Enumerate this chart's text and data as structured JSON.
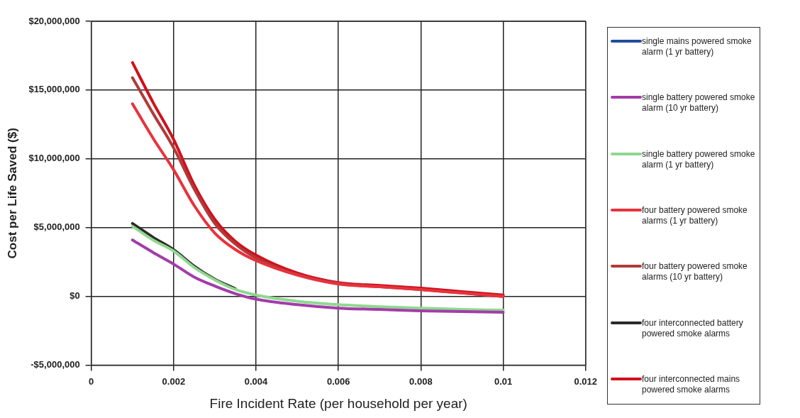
{
  "chart_data": {
    "type": "line",
    "xlabel": "Fire Incident Rate (per household per year)",
    "ylabel": "Cost per Life Saved ($)",
    "x": [
      0.001,
      0.0015,
      0.002,
      0.0025,
      0.003,
      0.0035,
      0.004,
      0.005,
      0.006,
      0.007,
      0.008,
      0.009,
      0.01
    ],
    "series": [
      {
        "name": "single mains powered  smoke alarm (1 yr battery)",
        "color": "#1f4e9c",
        "values": [
          null,
          null,
          null,
          null,
          null,
          null,
          null,
          null,
          null,
          null,
          null,
          null,
          null
        ]
      },
      {
        "name": "single battery powered smoke alarm (10 yr battery)",
        "color": "#a33ca8",
        "values": [
          4100000,
          3200000,
          2350000,
          1400000,
          750000,
          200000,
          -200000,
          -600000,
          -850000,
          -950000,
          -1050000,
          -1100000,
          -1150000
        ]
      },
      {
        "name": "single battery powered smoke alarm (1 yr battery)",
        "color": "#8fd88f",
        "values": [
          5100000,
          4100000,
          3300000,
          2100000,
          1200000,
          500000,
          100000,
          -350000,
          -600000,
          -750000,
          -850000,
          -950000,
          -1000000
        ]
      },
      {
        "name": "four battery powered smoke alarms (1 yr battery)",
        "color": "#e8323c",
        "values": [
          14000000,
          11500000,
          9200000,
          6600000,
          4600000,
          3400000,
          2600000,
          1550000,
          900000,
          700000,
          500000,
          250000,
          0
        ]
      },
      {
        "name": "four battery powered smoke alarms (10 yr battery)",
        "color": "#b03a3a",
        "values": [
          15900000,
          13300000,
          10800000,
          7800000,
          5300000,
          3800000,
          2800000,
          1600000,
          950000,
          700000,
          500000,
          250000,
          0
        ]
      },
      {
        "name": "four interconnected battery powered smoke alarms",
        "color": "#2a2a2a",
        "values": [
          5300000,
          4300000,
          3400000,
          2200000,
          1250000,
          550000,
          null,
          null,
          null,
          null,
          null,
          null,
          null
        ]
      },
      {
        "name": "four interconnected mains powered smoke alarms",
        "color": "#d0101c",
        "values": [
          17000000,
          14100000,
          11400000,
          8100000,
          5600000,
          4000000,
          3000000,
          1700000,
          1000000,
          800000,
          600000,
          350000,
          100000
        ]
      }
    ],
    "xlim": [
      0,
      0.012
    ],
    "xticks": [
      0,
      0.002,
      0.004,
      0.006,
      0.008,
      0.01,
      0.012
    ],
    "ylim": [
      -5000000,
      20000000
    ],
    "yticks": [
      {
        "value": -5000000,
        "label": "-$5,000,000"
      },
      {
        "value": 0,
        "label": "$0"
      },
      {
        "value": 5000000,
        "label": "$5,000,000"
      },
      {
        "value": 10000000,
        "label": "$10,000,000"
      },
      {
        "value": 15000000,
        "label": "$15,000,000"
      },
      {
        "value": 20000000,
        "label": "$20,000,000"
      }
    ],
    "grid": true,
    "legend": "right",
    "marker": "none",
    "line_style": "solid"
  }
}
